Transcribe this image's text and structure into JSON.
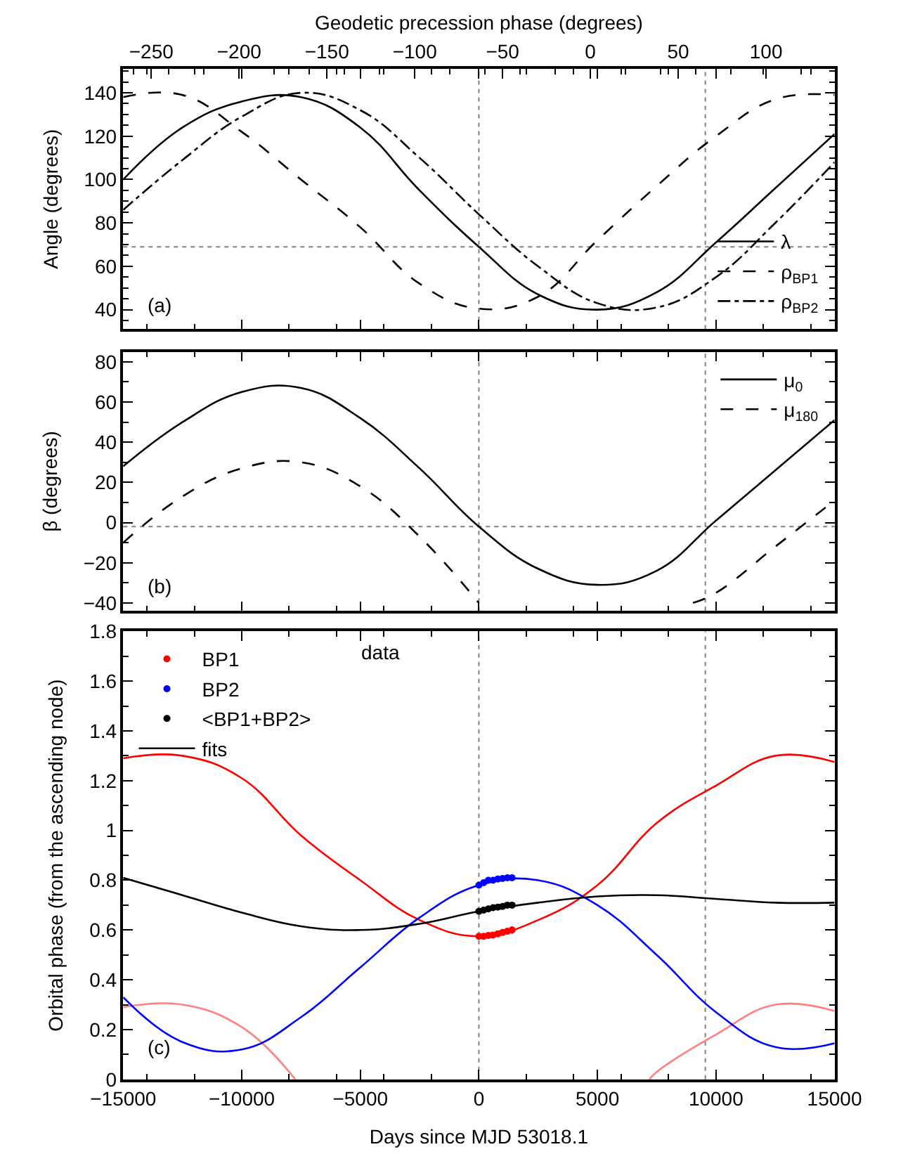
{
  "chart_data": [
    {
      "type": "line",
      "x2label": "Geodetic precession phase (degrees)",
      "ylabel": "Angle (degrees)",
      "x": [
        -15000,
        -12500,
        -10000,
        -7500,
        -5000,
        -2500,
        0,
        2500,
        5000,
        7500,
        10000,
        12500,
        15000
      ],
      "xlim": [
        -15000,
        15000
      ],
      "xticks": [
        -15000,
        -10000,
        -5000,
        0,
        5000,
        10000,
        15000
      ],
      "x2lim": [
        -266,
        139
      ],
      "x2ticks": [
        -250,
        -200,
        -150,
        -100,
        -50,
        0,
        50,
        100
      ],
      "ylim": [
        31,
        151
      ],
      "yticks": [
        40,
        60,
        80,
        100,
        120,
        140
      ],
      "tick_labels": "y",
      "legend": "bottom right",
      "annotations": [
        "(a)"
      ],
      "ref_lines": [
        {
          "axis": "x",
          "value": 0,
          "color": "#808080",
          "line_style": "dotted"
        },
        {
          "axis": "x",
          "value": 9550,
          "color": "#808080",
          "line_style": "dotted"
        },
        {
          "axis": "y",
          "value": 69,
          "color": "#808080",
          "line_style": "dotted"
        }
      ],
      "series": [
        {
          "name": "λ",
          "color": "#000000",
          "line_style": "solid",
          "values": [
            100,
            124,
            136,
            138,
            124,
            95,
            69,
            47,
            40,
            48,
            71,
            96,
            121
          ]
        },
        {
          "name": "ρ$_{BP1}$",
          "color": "#000000",
          "line_style": "dashed",
          "values": [
            138,
            139,
            122,
            100,
            78,
            52,
            40.5,
            46,
            72,
            97,
            120,
            137,
            139
          ]
        },
        {
          "name": "ρ$_{BP2}$",
          "color": "#000000",
          "line_style": "dashdot",
          "values": [
            86,
            109,
            129,
            140,
            132,
            110,
            84,
            60,
            43,
            41,
            55,
            80,
            108
          ]
        }
      ]
    },
    {
      "type": "line",
      "ylabel": "β (degrees)",
      "x": [
        -15000,
        -12500,
        -10000,
        -7500,
        -5000,
        -2500,
        0,
        2500,
        5000,
        7500,
        10000,
        12500,
        15000
      ],
      "xlim": [
        -15000,
        15000
      ],
      "xticks": [
        -15000,
        -10000,
        -5000,
        0,
        5000,
        10000,
        15000
      ],
      "ylim": [
        -44,
        85
      ],
      "yticks": [
        -40,
        -20,
        0,
        20,
        40,
        60,
        80
      ],
      "tick_labels": "y",
      "legend": "top right",
      "annotations": [
        "(b)"
      ],
      "ref_lines": [
        {
          "axis": "x",
          "value": 0,
          "color": "#808080",
          "line_style": "dotted"
        },
        {
          "axis": "x",
          "value": 9550,
          "color": "#808080",
          "line_style": "dotted"
        },
        {
          "axis": "y",
          "value": -2,
          "color": "#808080",
          "line_style": "dotted"
        }
      ],
      "series": [
        {
          "name": "μ$_{0}$",
          "color": "#000000",
          "line_style": "solid",
          "values": [
            28,
            50,
            65,
            67,
            52,
            27,
            -2,
            -23,
            -31,
            -24,
            1,
            26,
            51
          ]
        },
        {
          "name": "μ$_{180}$",
          "color": "#000000",
          "line_style": "dashed",
          "x": [
            -15000,
            -12500,
            -10000,
            -7500,
            -5000,
            -2500,
            0,
            5000,
            9030,
            10000,
            12500,
            15000
          ],
          "values": [
            -10,
            13,
            27,
            30,
            18,
            -7,
            -40,
            null,
            -40,
            -35,
            -12,
            11
          ]
        }
      ]
    },
    {
      "type": "line",
      "xlabel": "Days since MJD 53018.1",
      "ylabel": "Orbital phase (from the ascending node)",
      "x": [
        -15000,
        -12500,
        -10000,
        -7500,
        -5000,
        -2500,
        0,
        2500,
        5000,
        7500,
        10000,
        12500,
        15000
      ],
      "xlim": [
        -15000,
        15000
      ],
      "xticks": [
        -15000,
        -10000,
        -5000,
        0,
        5000,
        10000,
        15000
      ],
      "ylim": [
        0,
        1.8
      ],
      "yticks": [
        0,
        0.2,
        0.4,
        0.6,
        0.8,
        1,
        1.2,
        1.4,
        1.6,
        1.8
      ],
      "legend": "top left",
      "annotations": [
        "(c)",
        "data"
      ],
      "ref_lines": [
        {
          "axis": "x",
          "value": 0,
          "color": "#808080",
          "line_style": "dotted"
        },
        {
          "axis": "x",
          "value": 9550,
          "color": "#808080",
          "line_style": "dotted"
        }
      ],
      "series": [
        {
          "name": "BP1",
          "type": "scatter",
          "marker": "circle",
          "color": "#ff0000",
          "x": [
            0,
            200,
            400,
            600,
            800,
            1000,
            1200,
            1400
          ],
          "values": [
            0.575,
            0.575,
            0.578,
            0.58,
            0.585,
            0.59,
            0.595,
            0.6
          ],
          "errors": [
            0.005,
            0.005,
            0.005,
            0.005,
            0.005,
            0.005,
            0.005,
            0.015
          ]
        },
        {
          "name": "BP2",
          "type": "scatter",
          "marker": "circle",
          "color": "#0000ff",
          "x": [
            0,
            200,
            400,
            600,
            800,
            1000,
            1200,
            1400
          ],
          "values": [
            0.78,
            0.79,
            0.8,
            0.8,
            0.805,
            0.807,
            0.81,
            0.81
          ],
          "errors": [
            0.005,
            0.005,
            0.005,
            0.005,
            0.005,
            0.005,
            0.005,
            0.005
          ]
        },
        {
          "name": "<BP1+BP2>",
          "type": "scatter",
          "marker": "circle",
          "color": "#000000",
          "x": [
            0,
            200,
            400,
            600,
            800,
            1000,
            1200,
            1400
          ],
          "values": [
            0.675,
            0.68,
            0.685,
            0.69,
            0.692,
            0.695,
            0.7,
            0.7
          ],
          "errors": [
            0.004,
            0.004,
            0.004,
            0.004,
            0.004,
            0.004,
            0.004,
            0.004
          ]
        },
        {
          "color": "#ff0000",
          "line_style": "solid",
          "values": [
            1.29,
            1.3,
            1.21,
            0.98,
            0.8,
            0.64,
            0.575,
            0.64,
            0.78,
            1.03,
            1.18,
            1.3,
            1.275
          ]
        },
        {
          "color": "#ff8080",
          "line_style": "solid",
          "x": [
            -15000,
            -12500,
            -10000,
            -7740,
            0,
            7190,
            7500,
            10000,
            12500,
            15000
          ],
          "values": [
            0.29,
            0.3,
            0.21,
            0,
            null,
            0,
            0.03,
            0.18,
            0.3,
            0.275
          ]
        },
        {
          "color": "#0000ff",
          "line_style": "solid",
          "values": [
            0.33,
            0.15,
            0.12,
            0.25,
            0.45,
            0.65,
            0.78,
            0.8,
            0.7,
            0.5,
            0.27,
            0.13,
            0.145
          ]
        },
        {
          "name": "fits",
          "color": "#000000",
          "line_style": "solid",
          "values": [
            0.81,
            0.74,
            0.67,
            0.615,
            0.6,
            0.625,
            0.675,
            0.71,
            0.735,
            0.74,
            0.725,
            0.71,
            0.71
          ]
        }
      ]
    }
  ]
}
